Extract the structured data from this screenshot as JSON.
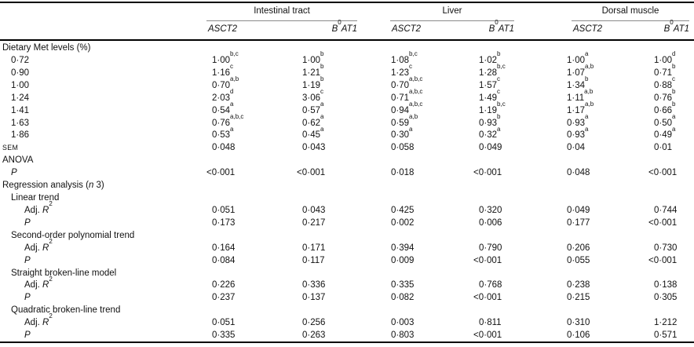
{
  "table": {
    "groups": [
      {
        "label": "Intestinal tract",
        "col1": "*ASCT2*",
        "col2": "*B*^0^*AT1*"
      },
      {
        "label": "Liver",
        "col1": "*ASCT2*",
        "col2": "*B*^0^*AT1*"
      },
      {
        "label": "Dorsal muscle",
        "col1": "*ASCT2*",
        "col2": "*B*^0^*AT1*"
      }
    ],
    "rows": [
      {
        "label": "Dietary Met levels (%)",
        "indent": 0,
        "cells": [
          "",
          "",
          "",
          "",
          "",
          ""
        ]
      },
      {
        "label": "0·72",
        "indent": 1,
        "cells": [
          "1·00^b,c^",
          "1·00^b^",
          "1·08^b,c^",
          "1·02^b^",
          "1·00^a^",
          "1·00^d^"
        ]
      },
      {
        "label": "0·90",
        "indent": 1,
        "cells": [
          "1·16^c^",
          "1·21^b^",
          "1·23^c^",
          "1·28^b,c^",
          "1·07^a,b^",
          "0·71^b^"
        ]
      },
      {
        "label": "1·00",
        "indent": 1,
        "cells": [
          "0·70^a,b^",
          "1·19^b^",
          "0·70^a,b,c^",
          "1·57^c^",
          "1·34^b^",
          "0·88^c^"
        ]
      },
      {
        "label": "1·24",
        "indent": 1,
        "cells": [
          "2·03^d^",
          "3·06^c^",
          "0·71^a,b,c^",
          "1·49^c^",
          "1·11^a,b^",
          "0·76^b^"
        ]
      },
      {
        "label": "1·41",
        "indent": 1,
        "cells": [
          "0·54^a^",
          "0·57^a^",
          "0·94^a,b,c^",
          "1·19^b,c^",
          "1·17^a,b^",
          "0·66^b^"
        ]
      },
      {
        "label": "1·63",
        "indent": 1,
        "cells": [
          "0·76^a,b,c^",
          "0·62^a^",
          "0·59^a,b^",
          "0·93^b^",
          "0·93^a^",
          "0·50^a^"
        ]
      },
      {
        "label": "1·86",
        "indent": 1,
        "cells": [
          "0·53^a^",
          "0·45^a^",
          "0·30^a^",
          "0·32^a^",
          "0·93^a^",
          "0·49^a^"
        ]
      },
      {
        "label": "SEM",
        "indent": 0,
        "small": true,
        "cells": [
          "0·048",
          "0·043",
          "0·058",
          "0·049",
          "0·04",
          "0·01"
        ]
      },
      {
        "label": "ANOVA",
        "indent": 0,
        "cells": [
          "",
          "",
          "",
          "",
          "",
          ""
        ]
      },
      {
        "label": "*P*",
        "indent": 1,
        "cells": [
          "<0·001",
          "<0·001",
          "0·018",
          "<0·001",
          "0·048",
          "<0·001"
        ]
      },
      {
        "label": "Regression analysis (*n* 3)",
        "indent": 0,
        "cells": [
          "",
          "",
          "",
          "",
          "",
          ""
        ]
      },
      {
        "label": "Linear trend",
        "indent": 1,
        "cells": [
          "",
          "",
          "",
          "",
          "",
          ""
        ]
      },
      {
        "label": "Adj. *R*^2^",
        "indent": 2,
        "cells": [
          "0·051",
          "0·043",
          "0·425",
          "0·320",
          "0·049",
          "0·744"
        ]
      },
      {
        "label": "*P*",
        "indent": 2,
        "cells": [
          "0·173",
          "0·217",
          "0·002",
          "0·006",
          "0·177",
          "<0·001"
        ]
      },
      {
        "label": "Second-order polynomial trend",
        "indent": 1,
        "cells": [
          "",
          "",
          "",
          "",
          "",
          ""
        ]
      },
      {
        "label": "Adj. *R*^2^",
        "indent": 2,
        "cells": [
          "0·164",
          "0·171",
          "0·394",
          "0·790",
          "0·206",
          "0·730"
        ]
      },
      {
        "label": "*P*",
        "indent": 2,
        "cells": [
          "0·084",
          "0·117",
          "0·009",
          "<0·001",
          "0·055",
          "<0·001"
        ]
      },
      {
        "label": "Straight broken-line model",
        "indent": 1,
        "cells": [
          "",
          "",
          "",
          "",
          "",
          ""
        ]
      },
      {
        "label": "Adj. *R*^2^",
        "indent": 2,
        "cells": [
          "0·226",
          "0·336",
          "0·335",
          "0·768",
          "0·238",
          "0·138"
        ]
      },
      {
        "label": "*P*",
        "indent": 2,
        "cells": [
          "0·237",
          "0·137",
          "0·082",
          "<0·001",
          "0·215",
          "0·305"
        ]
      },
      {
        "label": "Quadratic broken-line trend",
        "indent": 1,
        "cells": [
          "",
          "",
          "",
          "",
          "",
          ""
        ]
      },
      {
        "label": "Adj. *R*^2^",
        "indent": 2,
        "cells": [
          "0·051",
          "0·256",
          "0·003",
          "0·811",
          "0·310",
          "1·212"
        ]
      },
      {
        "label": "*P*",
        "indent": 2,
        "cells": [
          "0·335",
          "0·263",
          "0·803",
          "<0·001",
          "0·106",
          "0·571"
        ]
      }
    ]
  }
}
